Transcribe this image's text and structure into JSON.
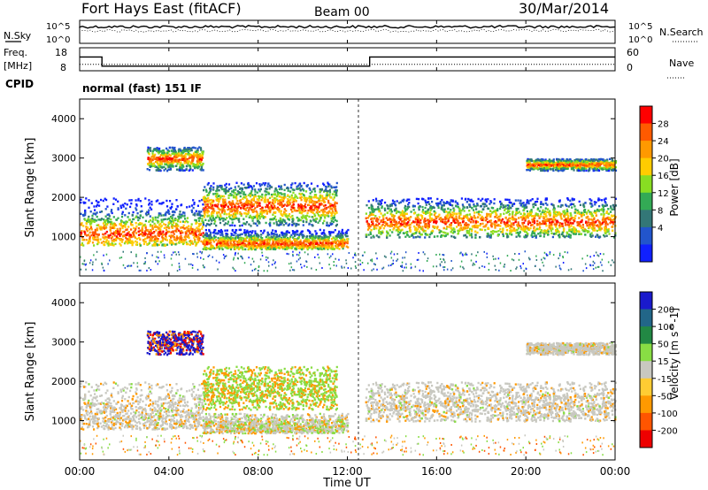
{
  "header": {
    "station": "Fort Hays East (fitACF)",
    "beam": "Beam 00",
    "date": "30/Mar/2014"
  },
  "strip_labels": {
    "nsky": "N.Sky",
    "nsearch": "N.Search",
    "freq_line1": "Freq.",
    "freq_line2": "[MHz]",
    "nave": "Nave",
    "cpid": "CPID",
    "mode": "normal (fast) 151 IF"
  },
  "chart_data": [
    {
      "type": "line",
      "panel": "noise",
      "x_range": [
        0,
        24
      ],
      "yticks_left": [
        "10^5",
        "10^0"
      ],
      "yticks_right": [
        "10^5",
        "10^0"
      ],
      "series": [
        {
          "name": "N.Sky",
          "level": 0.72
        },
        {
          "name": "N.Search",
          "level": 0.55
        }
      ]
    },
    {
      "type": "line",
      "panel": "frequency",
      "x_range": [
        0,
        24
      ],
      "yticks_left": [
        "18",
        "8"
      ],
      "yticks_right": [
        "60",
        "0"
      ],
      "ylim": [
        8,
        18
      ],
      "series": [
        {
          "name": "Freq.",
          "x": [
            0,
            1,
            1,
            13,
            13,
            24
          ],
          "y": [
            14,
            14,
            10,
            10,
            14,
            14
          ]
        },
        {
          "name": "Nave",
          "level_fraction": 0.28
        }
      ]
    },
    {
      "type": "heatmap",
      "panel": "power",
      "x_range": [
        0,
        24
      ],
      "ylim": [
        0,
        4500
      ],
      "ylabel": "Slant Range [km]",
      "yticks": [
        "1000",
        "2000",
        "3000",
        "4000"
      ],
      "colorbar": {
        "label": "Power [dB]",
        "ticks": [
          "28",
          "24",
          "20",
          "16",
          "12",
          "8",
          "4"
        ],
        "colors": [
          "#ff0000",
          "#ff5a00",
          "#ff9900",
          "#ffcc00",
          "#88dd22",
          "#33aa55",
          "#337777",
          "#2255cc",
          "#1020ff"
        ]
      },
      "regions": [
        {
          "name": "early band",
          "t": [
            0,
            5.5
          ],
          "r": [
            800,
            2000
          ],
          "core": 1100
        },
        {
          "name": "patch 3000km",
          "t": [
            3,
            5.5
          ],
          "r": [
            2700,
            3300
          ],
          "core": 3000
        },
        {
          "name": "midday band",
          "t": [
            5.5,
            12
          ],
          "r": [
            700,
            1200
          ],
          "core": 850
        },
        {
          "name": "upper cloud",
          "t": [
            5.5,
            11.5
          ],
          "r": [
            1300,
            2400
          ],
          "core": 1800
        },
        {
          "name": "afternoon band",
          "t": [
            12.8,
            24
          ],
          "r": [
            1000,
            2000
          ],
          "core": 1400
        },
        {
          "name": "far echoes",
          "t": [
            20,
            24
          ],
          "r": [
            2700,
            3000
          ],
          "core": 2850
        }
      ]
    },
    {
      "type": "heatmap",
      "panel": "velocity",
      "x_range": [
        0,
        24
      ],
      "ylim": [
        0,
        4500
      ],
      "ylabel": "Slant Range [km]",
      "yticks": [
        "1000",
        "2000",
        "3000",
        "4000"
      ],
      "colorbar": {
        "label": "Velocity [m s^-1]",
        "ticks": [
          "200",
          "100",
          "50",
          "15",
          "-15",
          "-50",
          "-100",
          "-200"
        ],
        "colors": [
          "#1a1acc",
          "#226688",
          "#228844",
          "#88dd44",
          "#c8c8c0",
          "#ffcc33",
          "#ff9900",
          "#ff5500",
          "#ee0000"
        ]
      }
    }
  ],
  "xaxis": {
    "label": "Time UT",
    "ticks": [
      "00:00",
      "04:00",
      "08:00",
      "12:00",
      "16:00",
      "20:00",
      "00:00"
    ]
  }
}
